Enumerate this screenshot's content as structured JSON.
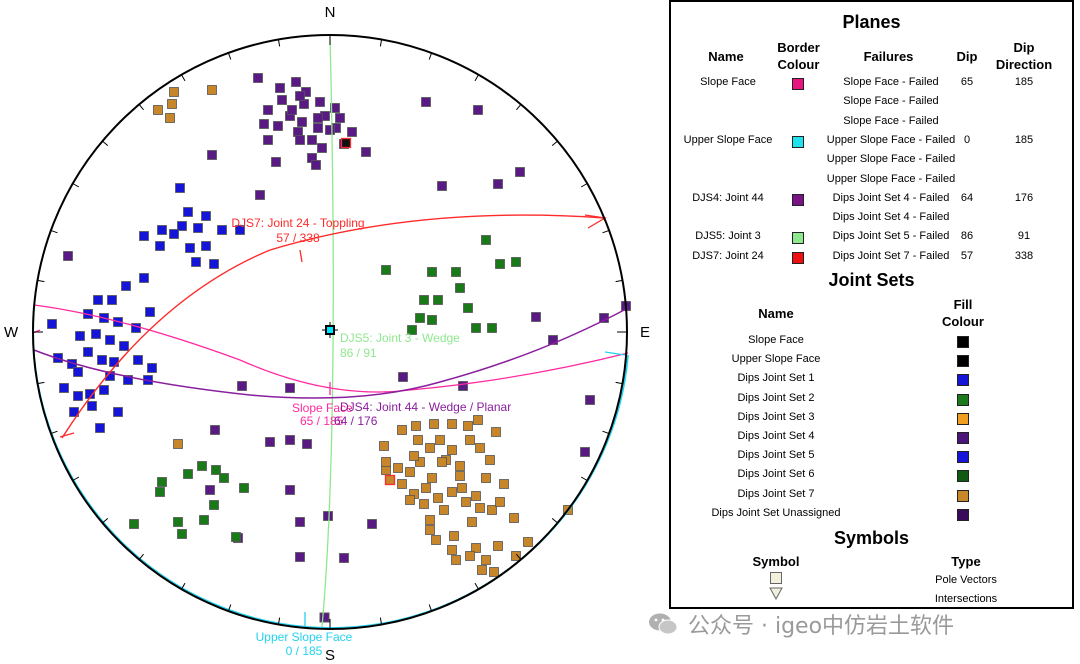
{
  "stereonet": {
    "compass": {
      "north": "N",
      "south": "S",
      "east": "E",
      "west": "W"
    },
    "plane_labels": {
      "djs7": {
        "name": "DJS7: Joint 24 - Toppling",
        "orientation": "57 / 338",
        "color": "#ff2a2a"
      },
      "djs5": {
        "name": "DJS5: Joint 3 - Wedge",
        "orientation": "86 / 91",
        "color": "#8fe88f"
      },
      "slope": {
        "name": "Slope Face",
        "orientation": "65 / 185",
        "color": "#ff2aa0"
      },
      "djs4": {
        "name": "DJS4: Joint 44 - Wedge / Planar",
        "orientation": "64 / 176",
        "color": "#8a1e9e"
      },
      "upper": {
        "name": "Upper Slope Face",
        "orientation": "0 / 185",
        "color": "#22d3ee"
      }
    },
    "colors": {
      "set1": "#1515d8",
      "set2": "#1a7a1a",
      "set3": "#c8862a",
      "set4": "#5a1a84",
      "great_circle_djs5": "#8fe88f",
      "great_circle_djs7": "#ff2a2a",
      "great_circle_slope": "#ff2aa0",
      "great_circle_djs4": "#8a1e9e",
      "great_circle_upper": "#22d3ee"
    }
  },
  "legend": {
    "planes": {
      "title": "Planes",
      "headers": {
        "name": "Name",
        "border": "Border Colour",
        "failures": "Failures",
        "dip": "Dip",
        "dipdir": "Dip Direction"
      },
      "rows": [
        {
          "name": "Slope Face",
          "color": "#e8147f",
          "failures": [
            "Slope Face - Failed",
            "Slope Face - Failed",
            "Slope Face - Failed"
          ],
          "dip": "65",
          "dipdir": "185"
        },
        {
          "name": "Upper Slope Face",
          "color": "#1ee3ef",
          "failures": [
            "Upper Slope Face - Failed",
            "Upper Slope Face - Failed",
            "Upper Slope Face - Failed"
          ],
          "dip": "0",
          "dipdir": "185"
        },
        {
          "name": "DJS4: Joint 44",
          "color": "#7a1486",
          "failures": [
            "Dips Joint Set 4 - Failed",
            "Dips Joint Set 4 - Failed"
          ],
          "dip": "64",
          "dipdir": "176"
        },
        {
          "name": "DJS5: Joint 3",
          "color": "#8ee88e",
          "failures": [
            "Dips Joint Set 5 - Failed"
          ],
          "dip": "86",
          "dipdir": "91"
        },
        {
          "name": "DJS7: Joint 24",
          "color": "#ee1010",
          "failures": [
            "Dips Joint Set 7 - Failed"
          ],
          "dip": "57",
          "dipdir": "338"
        }
      ]
    },
    "joint_sets": {
      "title": "Joint Sets",
      "headers": {
        "name": "Name",
        "fill": "Fill Colour"
      },
      "rows": [
        {
          "name": "Slope Face",
          "color": "#000000"
        },
        {
          "name": "Upper Slope Face",
          "color": "#000000"
        },
        {
          "name": "Dips Joint Set 1",
          "color": "#1515d8"
        },
        {
          "name": "Dips Joint Set 2",
          "color": "#1a7a1a"
        },
        {
          "name": "Dips Joint Set 3",
          "color": "#f0a020"
        },
        {
          "name": "Dips Joint Set 4",
          "color": "#4a1478"
        },
        {
          "name": "Dips Joint Set 5",
          "color": "#1515d8"
        },
        {
          "name": "Dips Joint Set 6",
          "color": "#125a12"
        },
        {
          "name": "Dips Joint Set 7",
          "color": "#c8862a"
        },
        {
          "name": "Dips Joint Set Unassigned",
          "color": "#3a0a5a"
        }
      ]
    },
    "symbols": {
      "title": "Symbols",
      "headers": {
        "symbol": "Symbol",
        "type": "Type"
      },
      "rows": [
        {
          "icon": "square-icon",
          "type": "Pole Vectors"
        },
        {
          "icon": "triangle-icon",
          "type": "Intersections"
        }
      ]
    }
  },
  "watermark": {
    "text": "公众号 · igeo中仿岩土软件"
  }
}
